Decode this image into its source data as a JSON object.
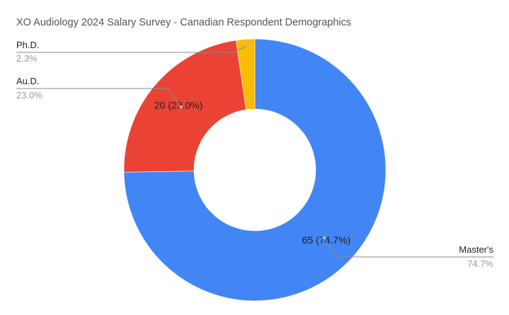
{
  "chart_data": {
    "type": "pie",
    "style": "donut",
    "title": "XO Audiology 2024 Salary Survey - Canadian Respondent Demographics",
    "slices": [
      {
        "name": "Master's",
        "value": 65,
        "percent": "74.7%",
        "data_label": "65 (74.7%)",
        "color": "#4285f4"
      },
      {
        "name": "Au.D.",
        "value": 20,
        "percent": "23.0%",
        "data_label": "20 (23.0%)",
        "color": "#ea4335"
      },
      {
        "name": "Ph.D.",
        "value": 2,
        "percent": "2.3%",
        "data_label": "",
        "color": "#fbbc04"
      }
    ],
    "legend": "none"
  }
}
